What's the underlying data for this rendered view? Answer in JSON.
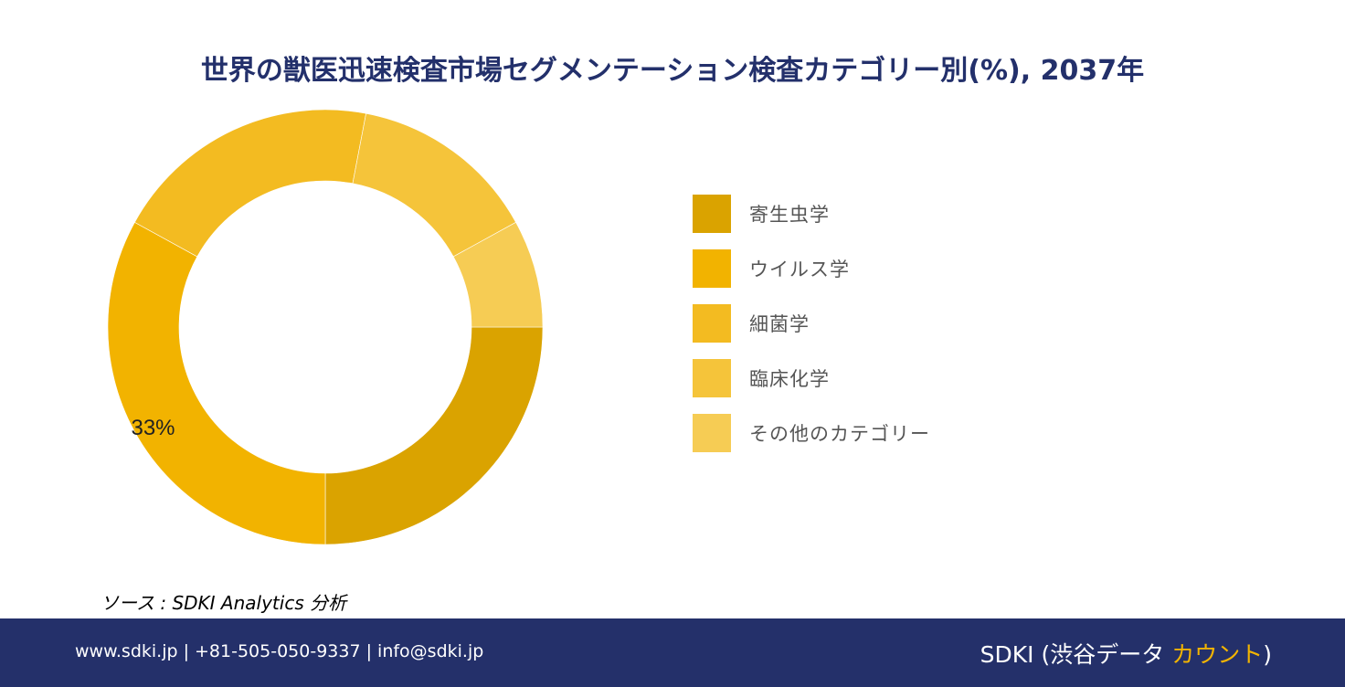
{
  "title": "世界の獣医迅速検査市場セグメンテーション検査カテゴリー別(%), 2037年",
  "chart_data": {
    "type": "pie",
    "donut": true,
    "categories": [
      "寄生虫学",
      "ウイルス学",
      "細菌学",
      "臨床化学",
      "その他のカテゴリー"
    ],
    "values": [
      25,
      33,
      20,
      14,
      8
    ],
    "colors": [
      "#daa300",
      "#f2b300",
      "#f3bb21",
      "#f5c43a",
      "#f6cc54"
    ],
    "data_labels": [
      "",
      "33%",
      "",
      "",
      ""
    ],
    "legend_position": "right"
  },
  "source": "ソース : SDKI Analytics 分析",
  "footer": {
    "contact": "www.sdki.jp | +81-505-050-9337 | info@sdki.jp",
    "brand_prefix": "SDKI (渋谷データ ",
    "brand_accent": "カウント",
    "brand_suffix": ")"
  }
}
